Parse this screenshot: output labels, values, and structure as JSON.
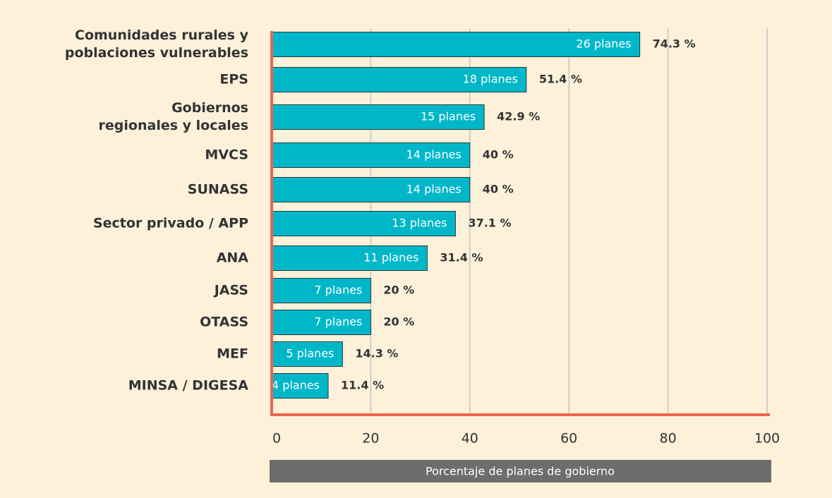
{
  "chart_data": {
    "type": "bar",
    "orientation": "horizontal",
    "x_label": "Porcentaje de planes de gobierno",
    "categories": [
      "Comunidades rurales y\npoblaciones vulnerables",
      "EPS",
      "Gobiernos\nregionales y locales",
      "MVCS",
      "SUNASS",
      "Sector privado / APP",
      "ANA",
      "JASS",
      "OTASS",
      "MEF",
      "MINSA / DIGESA"
    ],
    "values": [
      74.3,
      51.4,
      42.9,
      40,
      40,
      37.1,
      31.4,
      20,
      20,
      14.3,
      11.4
    ],
    "value_labels": [
      "74.3 %",
      "51.4 %",
      "42.9 %",
      "40 %",
      "40 %",
      "37.1 %",
      "31.4 %",
      "20 %",
      "20 %",
      "14.3 %",
      "11.4 %"
    ],
    "inner_labels": [
      "26 planes",
      "18 planes",
      "15 planes",
      "14 planes",
      "14 planes",
      "13 planes",
      "11 planes",
      "7 planes",
      "7 planes",
      "5 planes",
      "4 planes"
    ],
    "color": "#00b7c9",
    "xlim": [
      0,
      100
    ],
    "xticks": [
      0,
      20,
      40,
      60,
      80,
      100
    ],
    "grid": true
  }
}
